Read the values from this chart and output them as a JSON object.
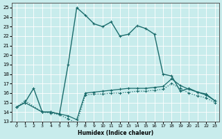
{
  "xlabel": "Humidex (Indice chaleur)",
  "ylabel": "",
  "xlim": [
    -0.5,
    23.5
  ],
  "ylim": [
    13,
    25.5
  ],
  "yticks": [
    13,
    14,
    15,
    16,
    17,
    18,
    19,
    20,
    21,
    22,
    23,
    24,
    25
  ],
  "xticks": [
    0,
    1,
    2,
    3,
    4,
    5,
    6,
    7,
    8,
    9,
    10,
    11,
    12,
    13,
    14,
    15,
    16,
    17,
    18,
    19,
    20,
    21,
    22,
    23
  ],
  "bg_color": "#c8ecec",
  "line_color": "#1a6b6b",
  "grid_color": "#ffffff",
  "line1_x": [
    0,
    1,
    3,
    4,
    5,
    6,
    7,
    8,
    9,
    10,
    11,
    12,
    13,
    14,
    15,
    16,
    17,
    18,
    19,
    20,
    21,
    22,
    23
  ],
  "line1_y": [
    14.5,
    15.0,
    14.0,
    14.0,
    13.8,
    13.6,
    13.2,
    16.0,
    16.1,
    16.2,
    16.3,
    16.4,
    16.5,
    16.5,
    16.5,
    16.6,
    16.7,
    17.5,
    16.8,
    16.4,
    16.1,
    15.9,
    15.2
  ],
  "line2_x": [
    0,
    1,
    3,
    4,
    5,
    6,
    7,
    8,
    9,
    10,
    11,
    12,
    13,
    14,
    15,
    16,
    17,
    18,
    19,
    20,
    21,
    22,
    23
  ],
  "line2_y": [
    14.5,
    15.2,
    14.0,
    13.9,
    13.7,
    13.3,
    12.8,
    15.8,
    15.9,
    15.9,
    16.0,
    16.0,
    16.1,
    16.2,
    16.2,
    16.3,
    16.4,
    17.0,
    16.5,
    16.0,
    15.7,
    15.5,
    15.0
  ],
  "line3_x": [
    0,
    1,
    2,
    3,
    4,
    5,
    6,
    7,
    8,
    9,
    10,
    11,
    12,
    13,
    14,
    15,
    16,
    17,
    18,
    19,
    20,
    21,
    22,
    23
  ],
  "line3_y": [
    14.5,
    15.0,
    16.5,
    14.0,
    14.0,
    13.8,
    19.0,
    25.0,
    24.2,
    23.3,
    23.0,
    23.5,
    22.0,
    22.2,
    23.1,
    22.8,
    22.2,
    18.0,
    17.8,
    16.2,
    16.5,
    16.1,
    15.8,
    15.2
  ]
}
